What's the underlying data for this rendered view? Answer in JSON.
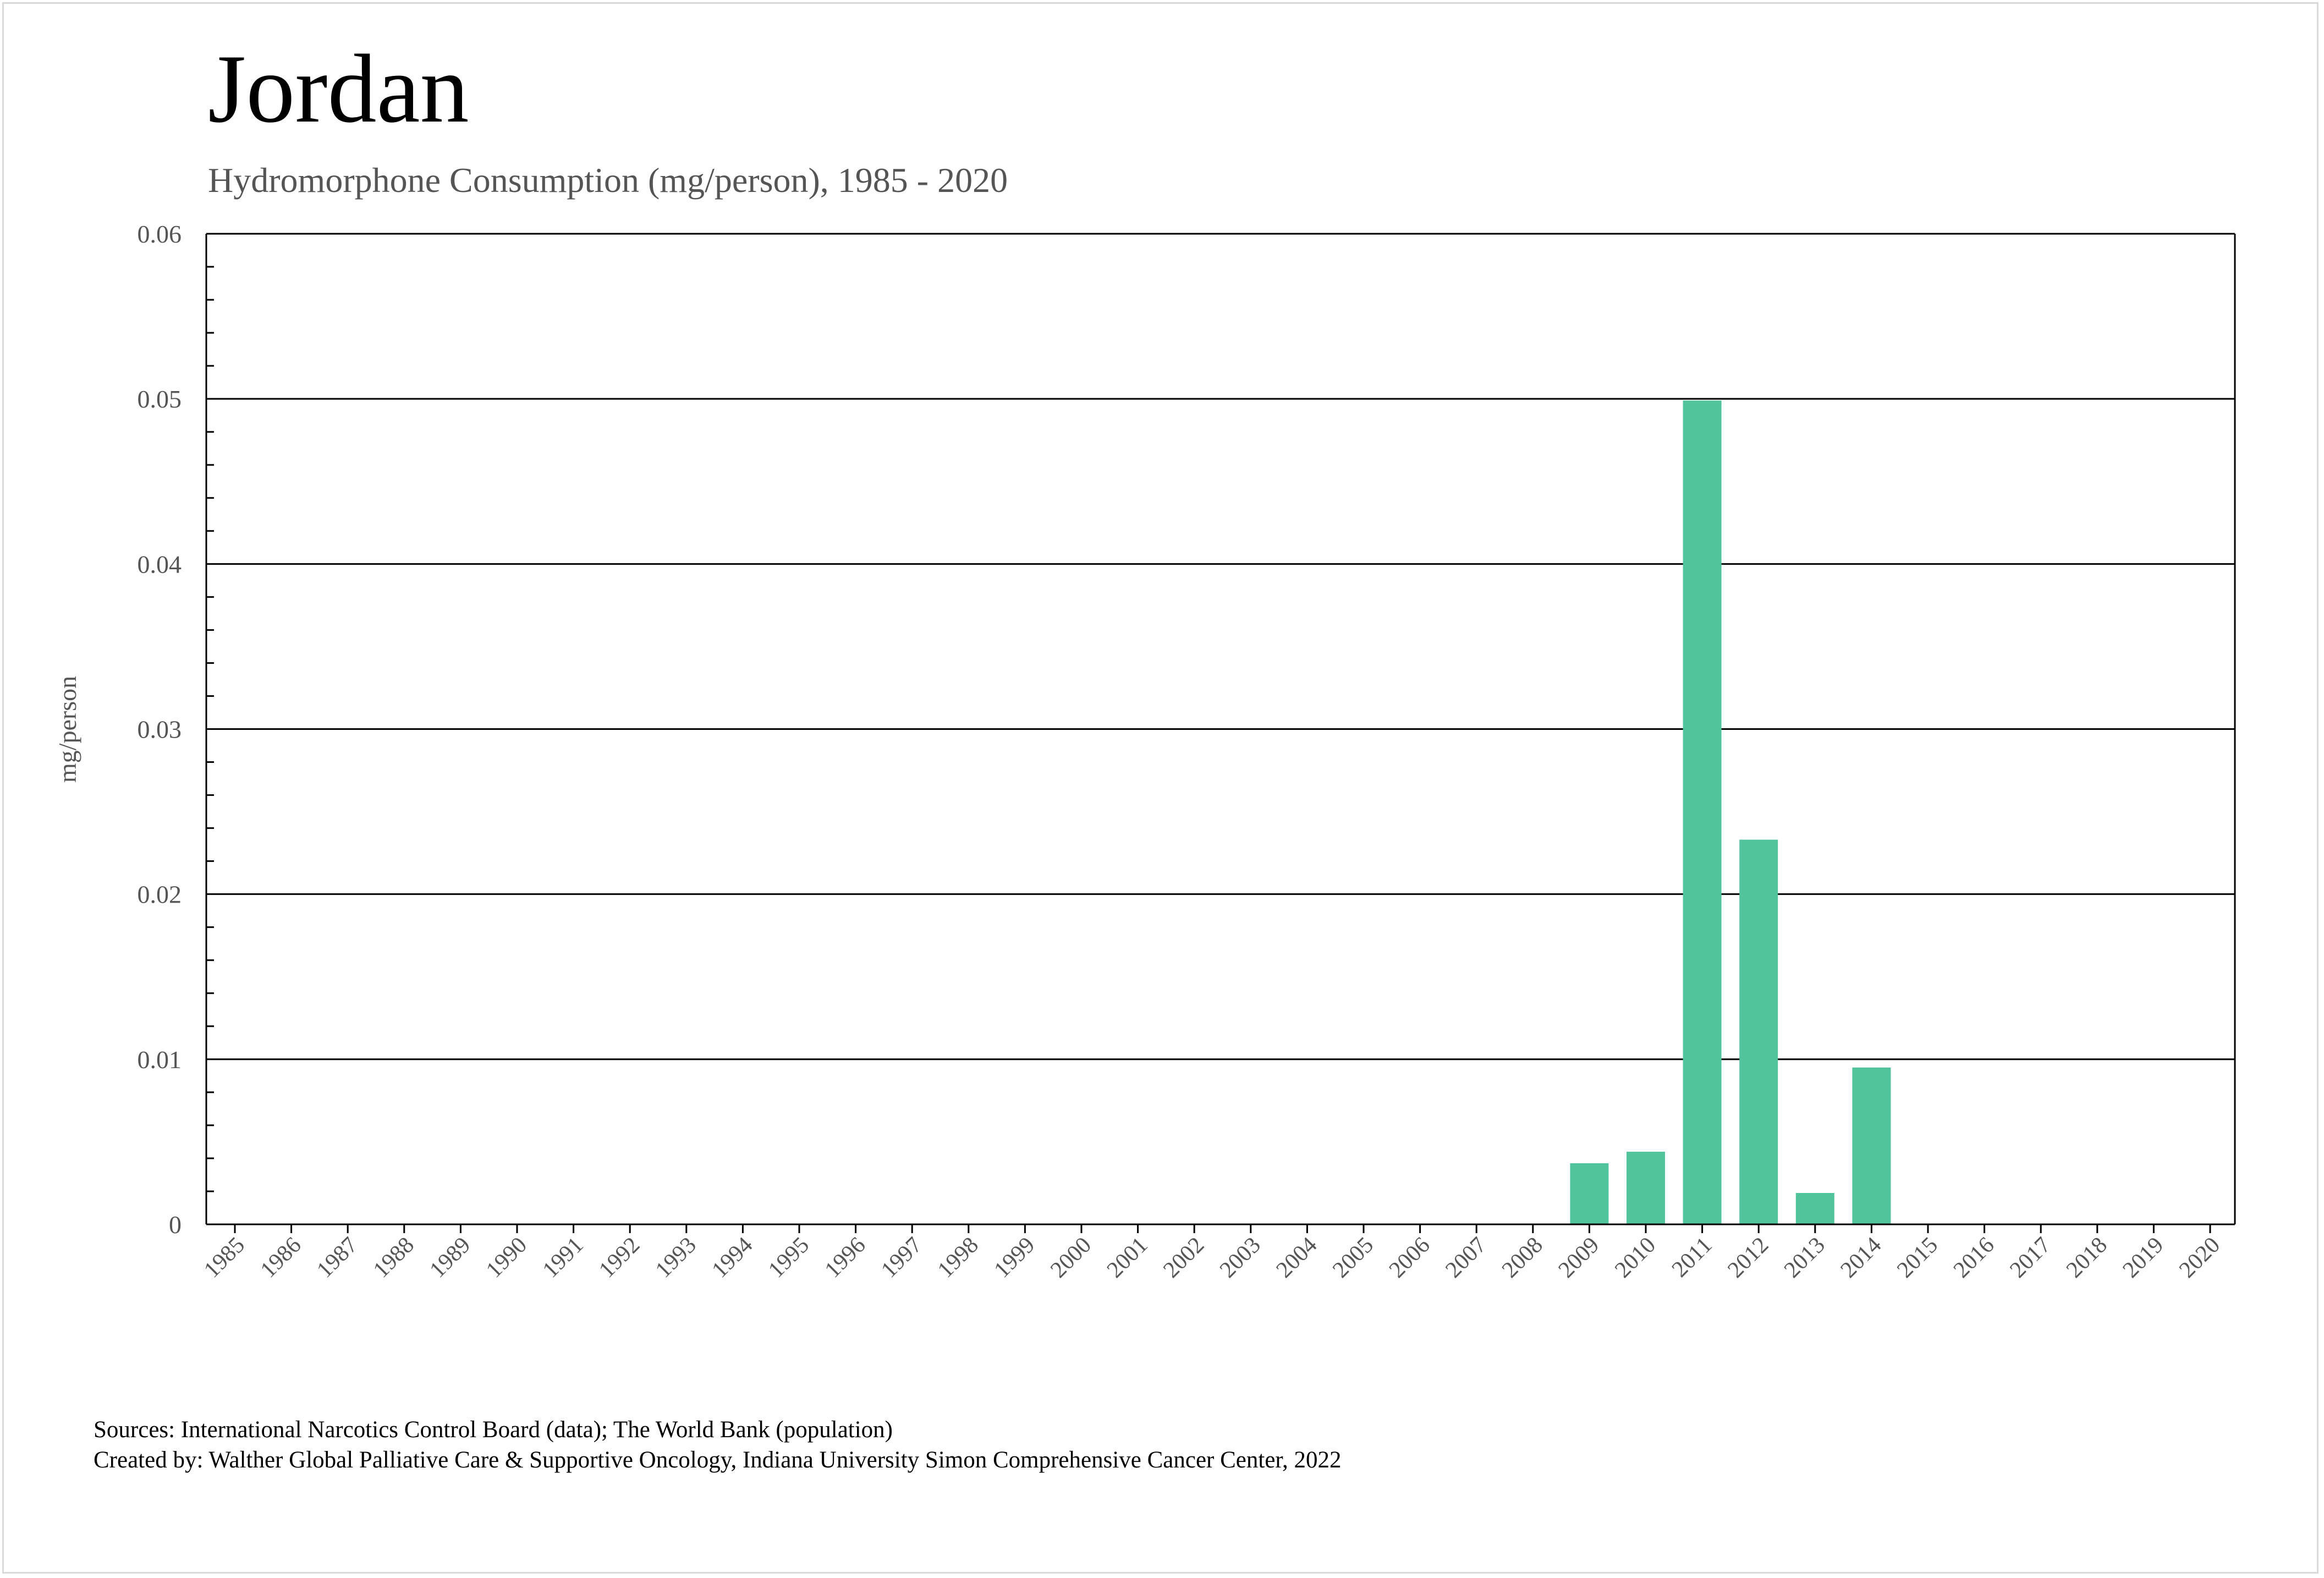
{
  "header": {
    "title": "Jordan",
    "subtitle": "Hydromorphone Consumption (mg/person), 1985 - 2020"
  },
  "footer": {
    "sources": "Sources: International Narcotics Control Board (data); The World Bank (population)",
    "created_by": "Created by: Walther Global Palliative Care & Supportive Oncology, Indiana University Simon Comprehensive Cancer Center, 2022"
  },
  "colors": {
    "bar": "#52c49c",
    "grid": "#000000",
    "axis_text": "#555555"
  },
  "chart_data": {
    "type": "bar",
    "title": "Jordan",
    "subtitle": "Hydromorphone Consumption (mg/person), 1985 - 2020",
    "xlabel": "",
    "ylabel": "mg/person",
    "ylim": [
      0,
      0.06
    ],
    "yticks": [
      0,
      0.01,
      0.02,
      0.03,
      0.04,
      0.05,
      0.06
    ],
    "ytick_labels": [
      "0",
      "0.01",
      "0.02",
      "0.03",
      "0.04",
      "0.05",
      "0.06"
    ],
    "grid": true,
    "legend": "none",
    "categories": [
      "1985",
      "1986",
      "1987",
      "1988",
      "1989",
      "1990",
      "1991",
      "1992",
      "1993",
      "1994",
      "1995",
      "1996",
      "1997",
      "1998",
      "1999",
      "2000",
      "2001",
      "2002",
      "2003",
      "2004",
      "2005",
      "2006",
      "2007",
      "2008",
      "2009",
      "2010",
      "2011",
      "2012",
      "2013",
      "2014",
      "2015",
      "2016",
      "2017",
      "2018",
      "2019",
      "2020"
    ],
    "values": [
      0,
      0,
      0,
      0,
      0,
      0,
      0,
      0,
      0,
      0,
      0,
      0,
      0,
      0,
      0,
      0,
      0,
      0,
      0,
      0,
      0,
      0,
      0,
      0,
      0.0037,
      0.0044,
      0.0499,
      0.0233,
      0.0019,
      0.0095,
      0,
      0,
      0,
      0,
      0,
      0
    ]
  }
}
